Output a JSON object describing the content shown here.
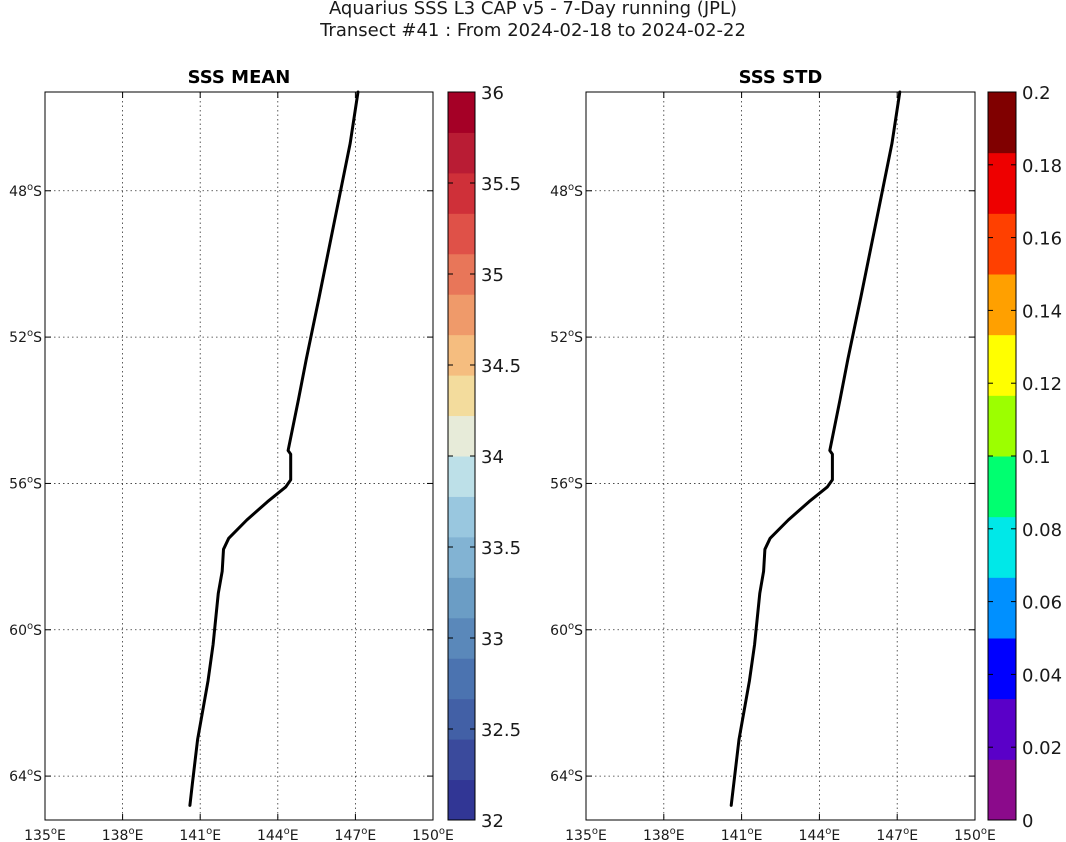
{
  "figure": {
    "title_line1": "Aquarius SSS L3 CAP v5 - 7-Day running (JPL)",
    "title_line2": "Transect #41 : From 2024-02-18 to 2024-02-22"
  },
  "chart_data": [
    {
      "type": "line",
      "title": "SSS MEAN",
      "xlabel": "",
      "ylabel": "",
      "xlim": [
        135,
        150
      ],
      "ylim": [
        -65.2,
        -45.3
      ],
      "grid": true,
      "x_ticks": [
        135,
        138,
        141,
        144,
        147,
        150
      ],
      "x_tick_labels": [
        "135°E",
        "138°E",
        "141°E",
        "144°E",
        "147°E",
        "150°E"
      ],
      "y_ticks": [
        -48,
        -52,
        -56,
        -60,
        -64
      ],
      "y_tick_labels": [
        "48°S",
        "52°S",
        "56°S",
        "60°S",
        "64°S"
      ],
      "series": [
        {
          "color": "#000000",
          "points": [
            [
              147.1,
              -45.3
            ],
            [
              146.8,
              -46.7
            ],
            [
              146.2,
              -48.8
            ],
            [
              145.6,
              -50.9
            ],
            [
              145.1,
              -52.6
            ],
            [
              144.8,
              -53.7
            ],
            [
              144.4,
              -55.1
            ],
            [
              144.5,
              -55.2
            ],
            [
              144.5,
              -55.9
            ],
            [
              144.3,
              -56.1
            ],
            [
              143.6,
              -56.5
            ],
            [
              142.8,
              -57.0
            ],
            [
              142.1,
              -57.5
            ],
            [
              141.9,
              -57.8
            ],
            [
              141.85,
              -58.4
            ],
            [
              141.7,
              -59.0
            ],
            [
              141.5,
              -60.4
            ],
            [
              141.3,
              -61.4
            ],
            [
              141.1,
              -62.2
            ],
            [
              140.9,
              -63.0
            ],
            [
              140.7,
              -64.2
            ],
            [
              140.6,
              -64.8
            ]
          ]
        }
      ],
      "colorbar": {
        "range": [
          32,
          36
        ],
        "tick_values": [
          32,
          32.5,
          33,
          33.5,
          34,
          34.5,
          35,
          35.5,
          36
        ],
        "tick_labels": [
          "32",
          "32.5",
          "33",
          "33.5",
          "34",
          "34.5",
          "35",
          "35.5",
          "36"
        ],
        "colors": [
          "#313695",
          "#3a4a9c",
          "#4260a6",
          "#4b73b0",
          "#5a88ba",
          "#6b9dc5",
          "#82b3d3",
          "#99c7df",
          "#bde0e8",
          "#e7ebd9",
          "#f3dc9d",
          "#f5bd7f",
          "#ef9a6a",
          "#e87659",
          "#df5148",
          "#cf3039",
          "#b91c34",
          "#a50026"
        ]
      }
    },
    {
      "type": "line",
      "title": "SSS STD",
      "xlabel": "",
      "ylabel": "",
      "xlim": [
        135,
        150
      ],
      "ylim": [
        -65.2,
        -45.3
      ],
      "grid": true,
      "x_ticks": [
        135,
        138,
        141,
        144,
        147,
        150
      ],
      "x_tick_labels": [
        "135°E",
        "138°E",
        "141°E",
        "144°E",
        "147°E",
        "150°E"
      ],
      "y_ticks": [
        -48,
        -52,
        -56,
        -60,
        -64
      ],
      "y_tick_labels": [
        "48°S",
        "52°S",
        "56°S",
        "60°S",
        "64°S"
      ],
      "series": [
        {
          "color": "#000000",
          "points": [
            [
              147.1,
              -45.3
            ],
            [
              146.8,
              -46.7
            ],
            [
              146.2,
              -48.8
            ],
            [
              145.6,
              -50.9
            ],
            [
              145.1,
              -52.6
            ],
            [
              144.8,
              -53.7
            ],
            [
              144.4,
              -55.1
            ],
            [
              144.5,
              -55.2
            ],
            [
              144.5,
              -55.9
            ],
            [
              144.3,
              -56.1
            ],
            [
              143.6,
              -56.5
            ],
            [
              142.8,
              -57.0
            ],
            [
              142.1,
              -57.5
            ],
            [
              141.9,
              -57.8
            ],
            [
              141.85,
              -58.4
            ],
            [
              141.7,
              -59.0
            ],
            [
              141.5,
              -60.4
            ],
            [
              141.3,
              -61.4
            ],
            [
              141.1,
              -62.2
            ],
            [
              140.9,
              -63.0
            ],
            [
              140.7,
              -64.2
            ],
            [
              140.6,
              -64.8
            ]
          ]
        }
      ],
      "colorbar": {
        "range": [
          0,
          0.2
        ],
        "tick_values": [
          0,
          0.02,
          0.04,
          0.06,
          0.08,
          0.1,
          0.12,
          0.14,
          0.16,
          0.18,
          0.2
        ],
        "tick_labels": [
          "0",
          "0.02",
          "0.04",
          "0.06",
          "0.08",
          "0.1",
          "0.12",
          "0.14",
          "0.16",
          "0.18",
          "0.2"
        ],
        "colors": [
          "#8b0a8b",
          "#5a00c8",
          "#0000ff",
          "#0090ff",
          "#00e8e8",
          "#00ff70",
          "#9cff00",
          "#ffff00",
          "#ffa000",
          "#ff4000",
          "#ee0000",
          "#800000"
        ]
      }
    }
  ]
}
